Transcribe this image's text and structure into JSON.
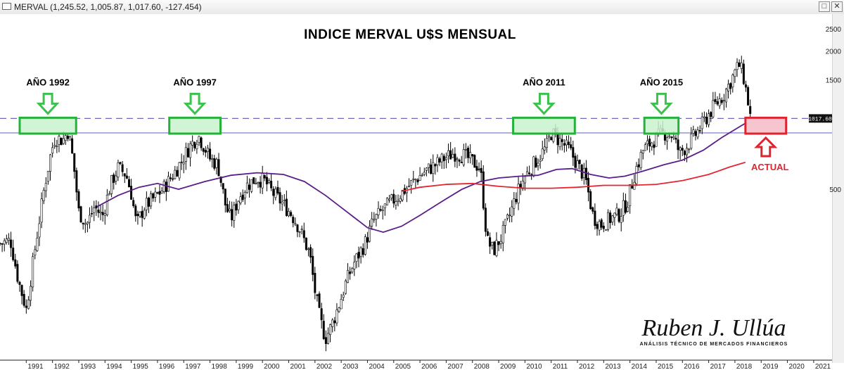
{
  "window": {
    "title": "MERVAL (1,245.52, 1,005.87, 1,017.60, -127.454)",
    "buttons": [
      "□",
      "✕"
    ]
  },
  "chart_data": {
    "type": "candlestick",
    "title": "INDICE MERVAL U$S MENSUAL",
    "xlabel": "",
    "ylabel": "",
    "x_ticks": [
      "1991",
      "1992",
      "1993",
      "1994",
      "1995",
      "1996",
      "1997",
      "1998",
      "1999",
      "2000",
      "2001",
      "2002",
      "2003",
      "2004",
      "2005",
      "2006",
      "2007",
      "2008",
      "2009",
      "2010",
      "2011",
      "2012",
      "2013",
      "2014",
      "2015",
      "2016",
      "2017",
      "2018",
      "2019",
      "2020",
      "2021"
    ],
    "y_ticks": [
      "2500",
      "2000",
      "1500",
      "500"
    ],
    "y_scale": "log",
    "xlim": [
      1990.0,
      2021.7
    ],
    "ylim": [
      90,
      2900
    ],
    "current_price_label": "1017.60",
    "horizontal_levels": [
      {
        "name": "dashed",
        "value": 1017.6,
        "style": "dashed",
        "color": "#6a6ab8"
      },
      {
        "name": "solid",
        "value": 880,
        "style": "solid",
        "color": "#6f6fbf"
      }
    ],
    "price_path": [
      [
        1990.0,
        290
      ],
      [
        1990.4,
        300
      ],
      [
        1990.7,
        200
      ],
      [
        1991.0,
        150
      ],
      [
        1991.3,
        260
      ],
      [
        1991.7,
        520
      ],
      [
        1991.95,
        730
      ],
      [
        1992.1,
        840
      ],
      [
        1992.4,
        820
      ],
      [
        1992.6,
        900
      ],
      [
        1992.8,
        650
      ],
      [
        1993.0,
        400
      ],
      [
        1993.3,
        350
      ],
      [
        1993.6,
        420
      ],
      [
        1993.9,
        380
      ],
      [
        1994.2,
        520
      ],
      [
        1994.5,
        620
      ],
      [
        1994.8,
        580
      ],
      [
        1995.0,
        480
      ],
      [
        1995.2,
        350
      ],
      [
        1995.5,
        420
      ],
      [
        1995.9,
        460
      ],
      [
        1996.2,
        500
      ],
      [
        1996.6,
        580
      ],
      [
        1996.9,
        660
      ],
      [
        1997.2,
        760
      ],
      [
        1997.55,
        860
      ],
      [
        1997.8,
        760
      ],
      [
        1998.0,
        680
      ],
      [
        1998.3,
        640
      ],
      [
        1998.6,
        420
      ],
      [
        1998.8,
        370
      ],
      [
        1999.1,
        460
      ],
      [
        1999.4,
        520
      ],
      [
        1999.8,
        560
      ],
      [
        2000.1,
        540
      ],
      [
        2000.4,
        480
      ],
      [
        2000.8,
        430
      ],
      [
        2001.1,
        390
      ],
      [
        2001.4,
        340
      ],
      [
        2001.8,
        260
      ],
      [
        2002.0,
        180
      ],
      [
        2002.2,
        135
      ],
      [
        2002.4,
        112
      ],
      [
        2002.6,
        125
      ],
      [
        2002.9,
        155
      ],
      [
        2003.2,
        200
      ],
      [
        2003.5,
        240
      ],
      [
        2003.9,
        290
      ],
      [
        2004.2,
        360
      ],
      [
        2004.6,
        410
      ],
      [
        2004.9,
        440
      ],
      [
        2005.2,
        470
      ],
      [
        2005.6,
        520
      ],
      [
        2005.9,
        560
      ],
      [
        2006.2,
        600
      ],
      [
        2006.6,
        640
      ],
      [
        2006.9,
        680
      ],
      [
        2007.3,
        720
      ],
      [
        2007.7,
        700
      ],
      [
        2008.0,
        660
      ],
      [
        2008.3,
        620
      ],
      [
        2008.55,
        300
      ],
      [
        2008.8,
        270
      ],
      [
        2009.1,
        310
      ],
      [
        2009.4,
        380
      ],
      [
        2009.7,
        480
      ],
      [
        2010.0,
        570
      ],
      [
        2010.4,
        660
      ],
      [
        2010.8,
        760
      ],
      [
        2011.0,
        880
      ],
      [
        2011.3,
        820
      ],
      [
        2011.7,
        740
      ],
      [
        2012.0,
        640
      ],
      [
        2012.3,
        560
      ],
      [
        2012.6,
        380
      ],
      [
        2012.9,
        350
      ],
      [
        2013.2,
        370
      ],
      [
        2013.6,
        390
      ],
      [
        2013.9,
        440
      ],
      [
        2014.2,
        600
      ],
      [
        2014.5,
        740
      ],
      [
        2014.9,
        820
      ],
      [
        2015.3,
        880
      ],
      [
        2015.6,
        860
      ],
      [
        2015.9,
        720
      ],
      [
        2016.2,
        780
      ],
      [
        2016.6,
        900
      ],
      [
        2016.9,
        1020
      ],
      [
        2017.2,
        1150
      ],
      [
        2017.55,
        1280
      ],
      [
        2017.8,
        1450
      ],
      [
        2018.0,
        1620
      ],
      [
        2018.15,
        1750
      ],
      [
        2018.3,
        1600
      ],
      [
        2018.45,
        1300
      ],
      [
        2018.6,
        1017.6
      ]
    ],
    "series": [
      {
        "name": "",
        "color": "#5a1d8a",
        "points": [
          [
            1993.7,
            420
          ],
          [
            1994.5,
            470
          ],
          [
            1995.3,
            510
          ],
          [
            1996.0,
            530
          ],
          [
            1996.8,
            500
          ],
          [
            1997.8,
            540
          ],
          [
            1998.8,
            575
          ],
          [
            1999.8,
            590
          ],
          [
            2000.8,
            580
          ],
          [
            2001.6,
            540
          ],
          [
            2002.4,
            470
          ],
          [
            2003.2,
            400
          ],
          [
            2004.0,
            340
          ],
          [
            2004.6,
            325
          ],
          [
            2005.3,
            345
          ],
          [
            2006.0,
            385
          ],
          [
            2006.8,
            440
          ],
          [
            2007.6,
            500
          ],
          [
            2008.3,
            540
          ],
          [
            2009.0,
            560
          ],
          [
            2009.8,
            570
          ],
          [
            2010.5,
            575
          ],
          [
            2011.2,
            610
          ],
          [
            2011.8,
            615
          ],
          [
            2012.5,
            580
          ],
          [
            2013.2,
            560
          ],
          [
            2013.8,
            570
          ],
          [
            2014.5,
            600
          ],
          [
            2015.3,
            640
          ],
          [
            2016.0,
            670
          ],
          [
            2016.8,
            740
          ],
          [
            2017.5,
            840
          ],
          [
            2018.2,
            940
          ],
          [
            2018.6,
            1000
          ]
        ]
      },
      {
        "name": "",
        "color": "#e3262f",
        "points": [
          [
            2005.3,
            490
          ],
          [
            2006.0,
            510
          ],
          [
            2007.0,
            525
          ],
          [
            2008.0,
            530
          ],
          [
            2009.0,
            515
          ],
          [
            2010.0,
            505
          ],
          [
            2011.0,
            505
          ],
          [
            2012.0,
            510
          ],
          [
            2013.0,
            520
          ],
          [
            2014.0,
            520
          ],
          [
            2015.0,
            525
          ],
          [
            2016.0,
            545
          ],
          [
            2017.0,
            580
          ],
          [
            2017.8,
            625
          ],
          [
            2018.4,
            655
          ]
        ]
      }
    ],
    "annotations": [
      {
        "text": "AÑO 1992",
        "x_start": 1990.75,
        "x_end": 1992.9,
        "kind": "resistance"
      },
      {
        "text": "AÑO 1997",
        "x_start": 1996.45,
        "x_end": 1998.4,
        "kind": "resistance"
      },
      {
        "text": "AÑO 2011",
        "x_start": 2009.55,
        "x_end": 2011.9,
        "kind": "resistance"
      },
      {
        "text": "AÑO 2015",
        "x_start": 2014.55,
        "x_end": 2015.85,
        "kind": "resistance"
      },
      {
        "text": "ACTUAL",
        "x_start": 2018.4,
        "x_end": 2019.95,
        "kind": "current"
      }
    ],
    "colors": {
      "box_green_fill": "#c9f2cc",
      "box_green_stroke": "#25b13a",
      "box_red_fill": "#f6c5cf",
      "box_red_stroke": "#e0242f",
      "arrow_green": "#3cc14f",
      "candle": "#000000"
    }
  },
  "signature": {
    "name": "Ruben J. Ullúa",
    "subtitle": "ANÁLISIS TÉCNICO DE MERCADOS FINANCIEROS"
  }
}
